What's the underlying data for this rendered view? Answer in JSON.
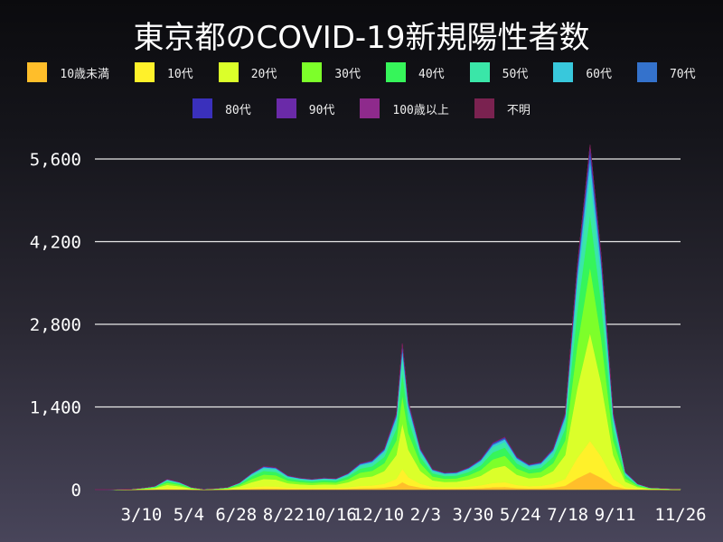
{
  "title": "東京都のCOVID-19新規陽性者数",
  "chart_data": {
    "type": "bar",
    "stacked": true,
    "title": "東京都のCOVID-19新規陽性者数",
    "xlabel": "",
    "ylabel": "",
    "ylim": [
      0,
      5600
    ],
    "yticks": [
      0,
      1400,
      2800,
      4200,
      5600
    ],
    "ytick_labels": [
      "0",
      "1,400",
      "2,800",
      "4,200",
      "5,600"
    ],
    "grid": "horizontal",
    "legend_position": "top",
    "xlim": [
      "2020-01-16",
      "2021-11-26"
    ],
    "xticks": [
      {
        "date": "2020-03-10",
        "label": "3/10"
      },
      {
        "date": "2020-05-04",
        "label": "5/4"
      },
      {
        "date": "2020-06-28",
        "label": "6/28"
      },
      {
        "date": "2020-08-22",
        "label": "8/22"
      },
      {
        "date": "2020-10-16",
        "label": "10/16"
      },
      {
        "date": "2020-12-10",
        "label": "12/10"
      },
      {
        "date": "2021-02-03",
        "label": "2/3"
      },
      {
        "date": "2021-03-30",
        "label": "3/30"
      },
      {
        "date": "2021-05-24",
        "label": "5/24"
      },
      {
        "date": "2021-07-18",
        "label": "7/18"
      },
      {
        "date": "2021-09-11",
        "label": "9/11"
      },
      {
        "date": "2021-11-26",
        "label": "11/26"
      }
    ],
    "dates": [
      "2020-01-16",
      "2020-01-30",
      "2020-02-13",
      "2020-02-27",
      "2020-03-12",
      "2020-03-26",
      "2020-04-09",
      "2020-04-23",
      "2020-05-07",
      "2020-05-21",
      "2020-06-04",
      "2020-06-18",
      "2020-07-02",
      "2020-07-16",
      "2020-07-30",
      "2020-08-13",
      "2020-08-27",
      "2020-09-10",
      "2020-09-24",
      "2020-10-08",
      "2020-10-22",
      "2020-11-05",
      "2020-11-19",
      "2020-12-03",
      "2020-12-17",
      "2020-12-31",
      "2021-01-07",
      "2021-01-14",
      "2021-01-28",
      "2021-02-11",
      "2021-02-25",
      "2021-03-11",
      "2021-03-25",
      "2021-04-08",
      "2021-04-22",
      "2021-05-06",
      "2021-05-20",
      "2021-06-03",
      "2021-06-17",
      "2021-07-01",
      "2021-07-15",
      "2021-07-29",
      "2021-08-13",
      "2021-08-26",
      "2021-09-09",
      "2021-09-23",
      "2021-10-07",
      "2021-10-21",
      "2021-11-04",
      "2021-11-18",
      "2021-11-26"
    ],
    "totals": [
      0,
      2,
      5,
      10,
      30,
      60,
      180,
      130,
      40,
      10,
      20,
      40,
      120,
      280,
      400,
      380,
      240,
      200,
      180,
      200,
      190,
      280,
      450,
      500,
      700,
      1300,
      2500,
      1500,
      700,
      350,
      290,
      300,
      380,
      520,
      800,
      900,
      560,
      430,
      470,
      700,
      1300,
      3800,
      5900,
      4000,
      1300,
      300,
      100,
      35,
      25,
      15,
      15
    ],
    "series": [
      {
        "name": "10歳未満",
        "color": "#ffbe2a",
        "share": 0.05
      },
      {
        "name": "10代",
        "color": "#fff12a",
        "share": 0.09
      },
      {
        "name": "20代",
        "color": "#dbff2a",
        "share": 0.31
      },
      {
        "name": "30代",
        "color": "#7dff2a",
        "share": 0.19
      },
      {
        "name": "40代",
        "color": "#36f55a",
        "share": 0.15
      },
      {
        "name": "50代",
        "color": "#3ae6a8",
        "share": 0.11
      },
      {
        "name": "60代",
        "color": "#38c8dc",
        "share": 0.045
      },
      {
        "name": "70代",
        "color": "#3472cc",
        "share": 0.025
      },
      {
        "name": "80代",
        "color": "#3a30bc",
        "share": 0.013
      },
      {
        "name": "90代",
        "color": "#6a2aa8",
        "share": 0.005
      },
      {
        "name": "100歳以上",
        "color": "#8e2a8c",
        "share": 0.001
      },
      {
        "name": "不明",
        "color": "#7a2250",
        "share": 0.001
      }
    ]
  }
}
